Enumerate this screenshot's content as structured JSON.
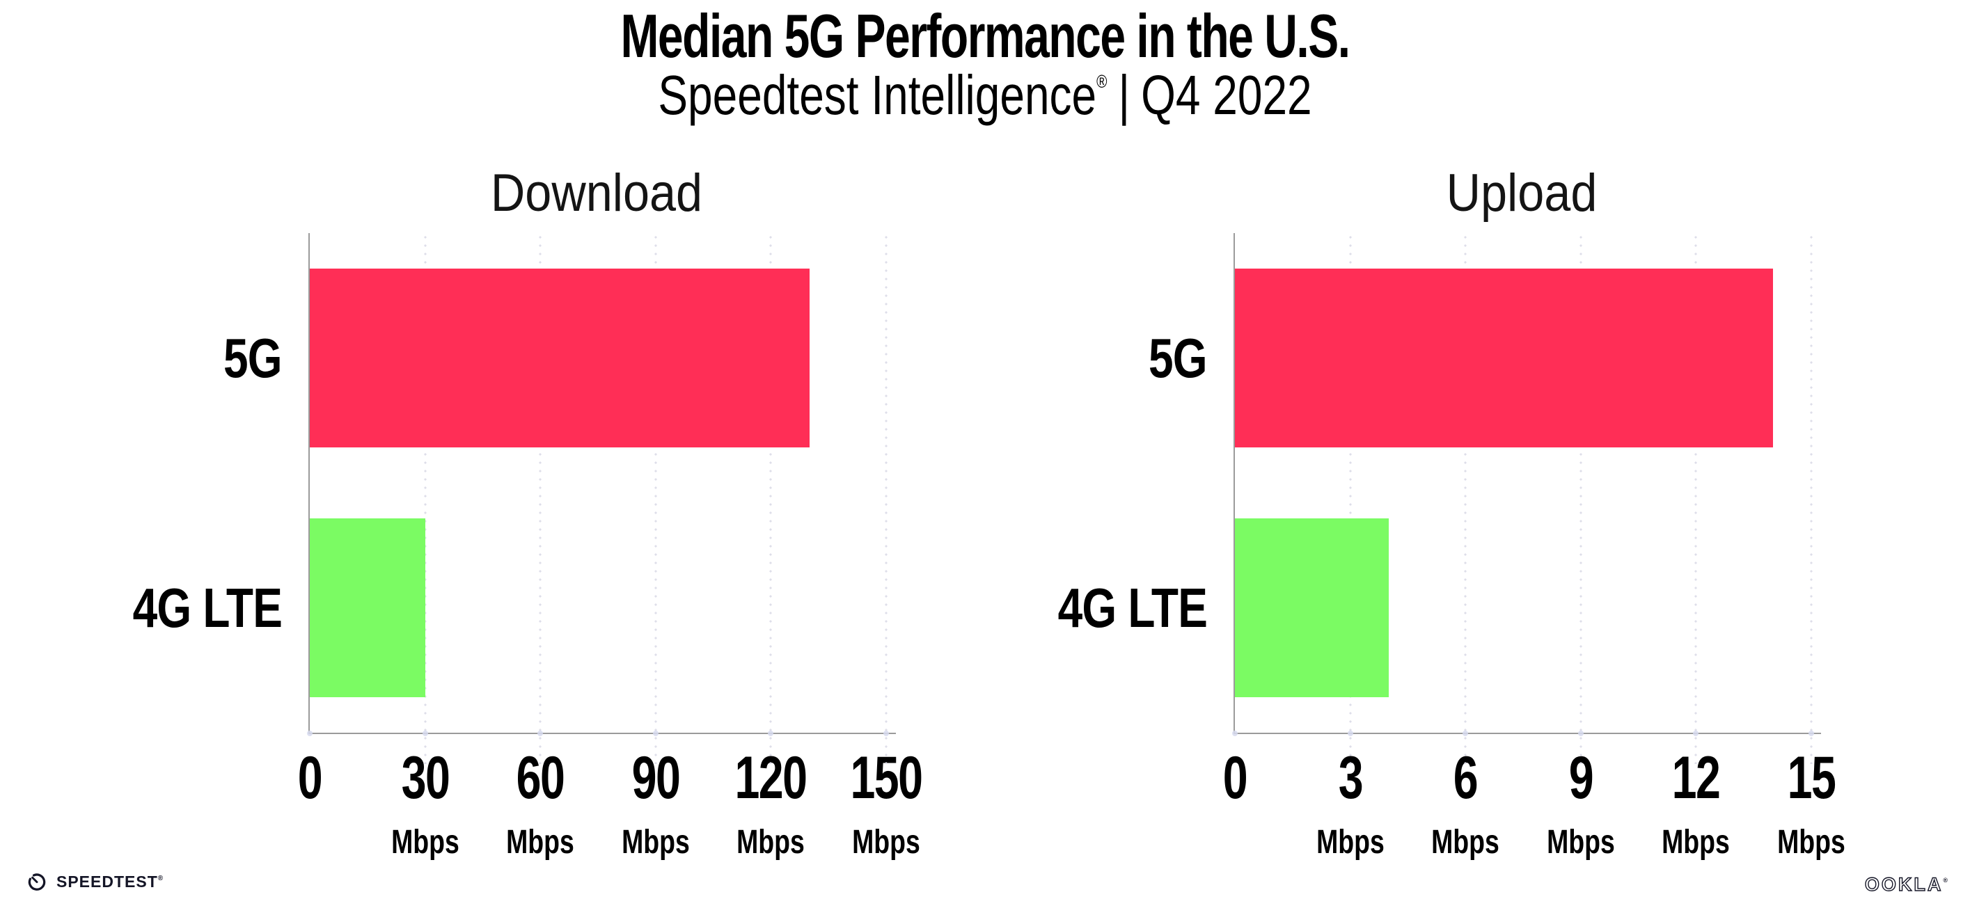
{
  "header": {
    "title": "Median 5G Performance in the U.S.",
    "subtitle": {
      "brand": "Speedtest Intelligence",
      "registered_mark": "®",
      "separator": "|",
      "period": "Q4 2022"
    }
  },
  "chart_data": [
    {
      "type": "bar",
      "orientation": "horizontal",
      "title": "Download",
      "categories": [
        "5G",
        "4G LTE"
      ],
      "values": [
        130,
        30
      ],
      "value_unit": "Mbps",
      "xlim": [
        0,
        150
      ],
      "xticks": [
        0,
        30,
        60,
        90,
        120,
        150
      ],
      "xtick_unit": "Mbps",
      "bar_colors": [
        "#FF2E56",
        "#7BFB63"
      ],
      "grid": "vertical-dotted",
      "legend": "none"
    },
    {
      "type": "bar",
      "orientation": "horizontal",
      "title": "Upload",
      "categories": [
        "5G",
        "4G LTE"
      ],
      "values": [
        14,
        4
      ],
      "value_unit": "Mbps",
      "xlim": [
        0,
        15
      ],
      "xticks": [
        0,
        3,
        6,
        9,
        12,
        15
      ],
      "xtick_unit": "Mbps",
      "bar_colors": [
        "#FF2E56",
        "#7BFB63"
      ],
      "grid": "vertical-dotted",
      "legend": "none"
    }
  ],
  "footer": {
    "speedtest_wordmark": "SPEEDTEST",
    "speedtest_mark": "®",
    "ookla_wordmark": "OOKLA",
    "ookla_mark": "®"
  },
  "colors": {
    "bar_5g": "#FF2E56",
    "bar_4g_lte": "#7BFB63",
    "gridline": "#DEDEE9",
    "axis": "#9B9B9B",
    "text": "#0C0C12",
    "background": "#FFFFFF"
  }
}
